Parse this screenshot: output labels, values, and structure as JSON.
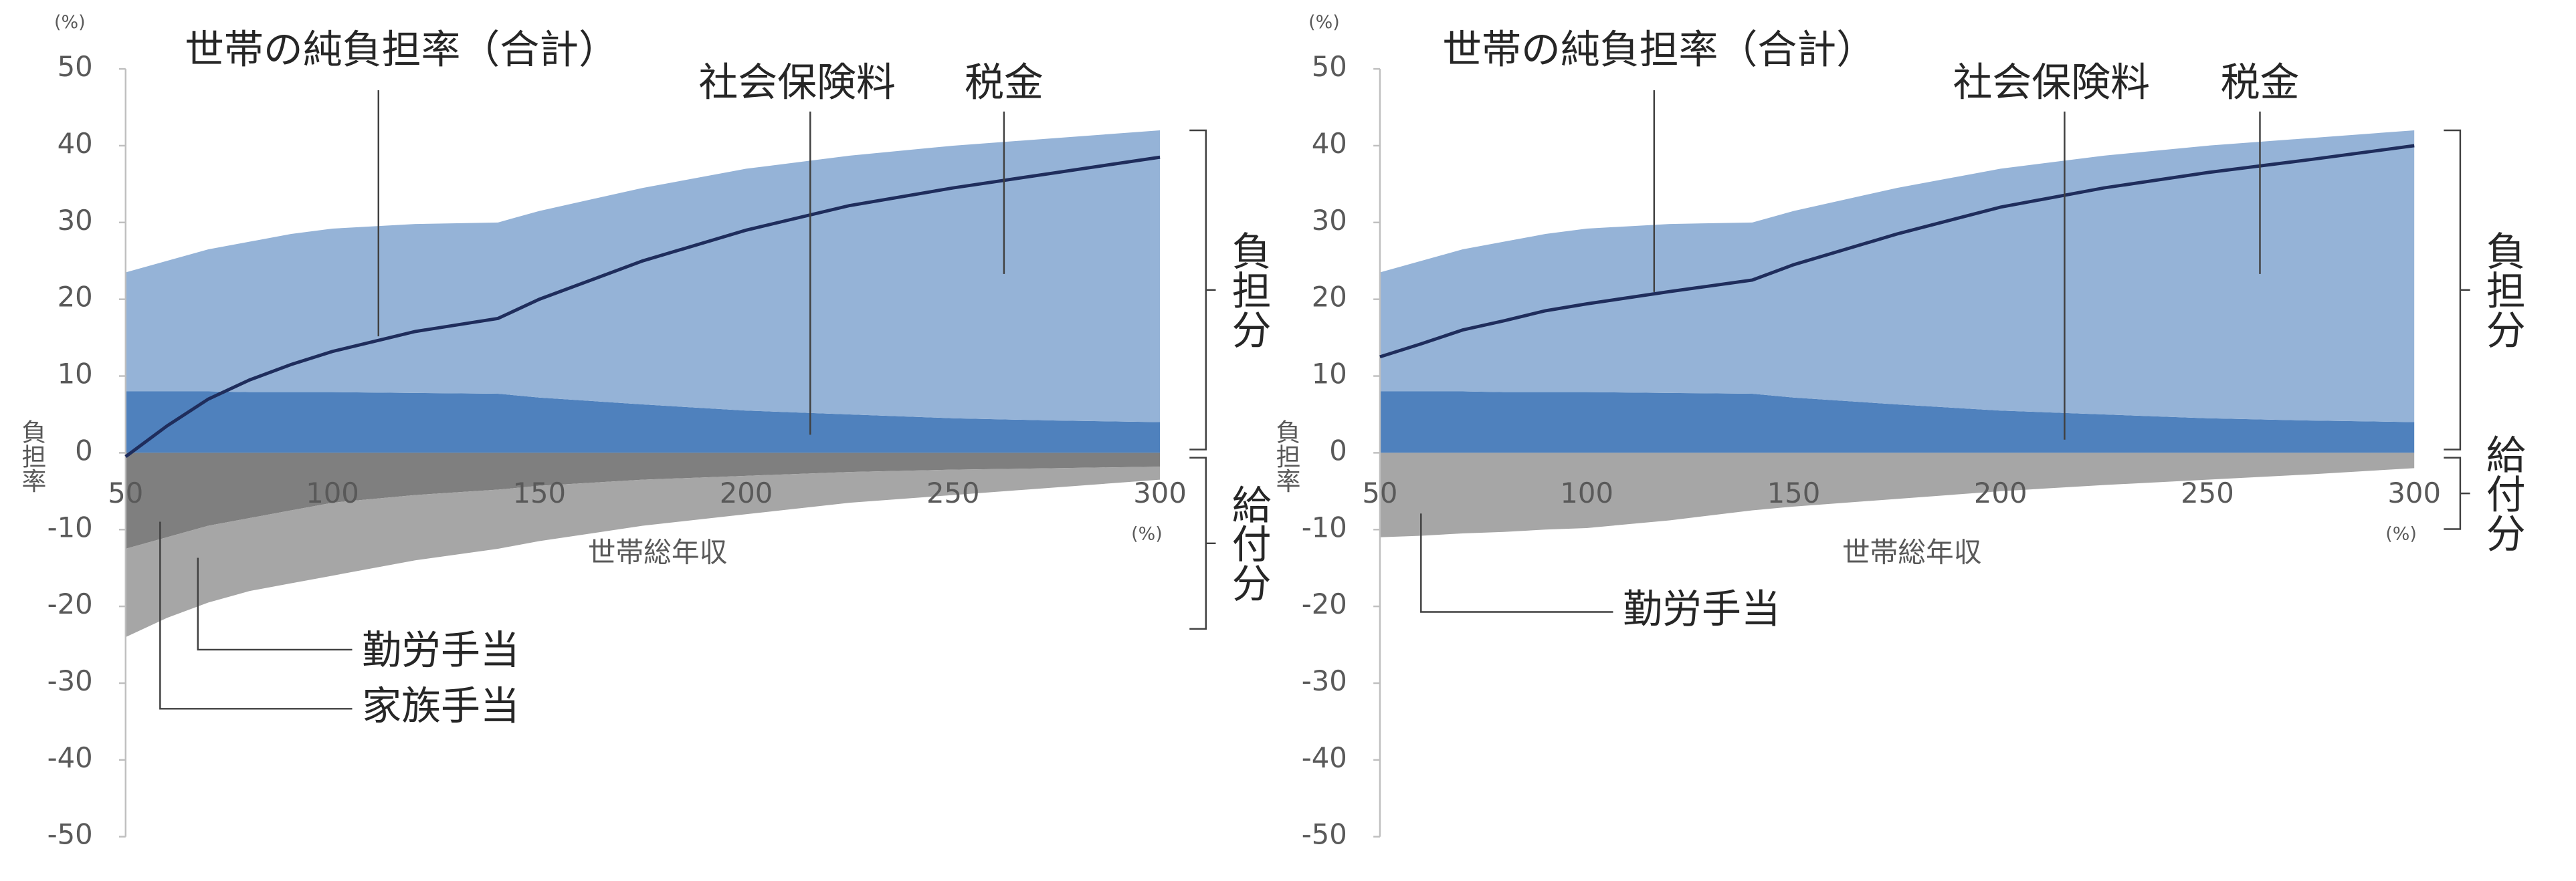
{
  "chart_data": [
    {
      "type": "stacked_area",
      "y_unit": "(%)",
      "x_unit": "(%)",
      "ylabel": "負担率",
      "xlabel": "世帯総年収",
      "annotations": [
        "負担分",
        "給付分"
      ],
      "xlim": [
        50,
        300
      ],
      "xticks": [
        50,
        100,
        150,
        200,
        250,
        300
      ],
      "ylim": [
        -50,
        50
      ],
      "yticks": [
        -50,
        -40,
        -30,
        -20,
        -10,
        0,
        10,
        20,
        30,
        40,
        50
      ],
      "x": [
        50,
        60,
        70,
        80,
        90,
        100,
        120,
        140,
        150,
        175,
        200,
        225,
        250,
        275,
        300
      ],
      "series": [
        {
          "name": "社会保険料",
          "type": "area",
          "color": "#4f81bd",
          "values": [
            8,
            8,
            8,
            7.9,
            7.9,
            7.9,
            7.8,
            7.7,
            7.2,
            6.3,
            5.5,
            5,
            4.5,
            4.2,
            4
          ]
        },
        {
          "name": "税金",
          "type": "area",
          "color": "#95b3d7",
          "values": [
            15.5,
            17,
            18.5,
            19.6,
            20.6,
            21.3,
            22,
            22.3,
            24.3,
            28.2,
            31.5,
            33.7,
            35.5,
            36.8,
            38
          ]
        },
        {
          "name": "家族手当",
          "type": "area",
          "color": "#7f7f7f",
          "values": [
            -12.5,
            -11,
            -9.5,
            -8.5,
            -7.5,
            -6.5,
            -5.5,
            -4.8,
            -4.3,
            -3.5,
            -3,
            -2.5,
            -2.2,
            -2,
            -1.8
          ]
        },
        {
          "name": "勤労手当",
          "type": "area",
          "color": "#a6a6a6",
          "values": [
            -11.5,
            -10.5,
            -10,
            -9.5,
            -9.5,
            -9.5,
            -8.5,
            -7.7,
            -7.2,
            -6,
            -5,
            -4,
            -3.3,
            -2.5,
            -1.7
          ]
        },
        {
          "name": "世帯の純負担率（合計）",
          "type": "line",
          "color": "#1f2d5c",
          "values": [
            -0.5,
            3.5,
            7,
            9.5,
            11.5,
            13.2,
            15.8,
            17.5,
            20,
            25,
            29,
            32.2,
            34.5,
            36.5,
            38.5
          ]
        }
      ]
    },
    {
      "type": "stacked_area",
      "y_unit": "(%)",
      "x_unit": "(%)",
      "ylabel": "負担率",
      "xlabel": "世帯総年収",
      "annotations": [
        "負担分",
        "給付分"
      ],
      "xlim": [
        50,
        300
      ],
      "xticks": [
        50,
        100,
        150,
        200,
        250,
        300
      ],
      "ylim": [
        -50,
        50
      ],
      "yticks": [
        -50,
        -40,
        -30,
        -20,
        -10,
        0,
        10,
        20,
        30,
        40,
        50
      ],
      "x": [
        50,
        60,
        70,
        80,
        90,
        100,
        120,
        140,
        150,
        175,
        200,
        225,
        250,
        275,
        300
      ],
      "series": [
        {
          "name": "社会保険料",
          "type": "area",
          "color": "#4f81bd",
          "values": [
            8,
            8,
            8,
            7.9,
            7.9,
            7.9,
            7.8,
            7.7,
            7.2,
            6.3,
            5.5,
            5,
            4.5,
            4.2,
            4
          ]
        },
        {
          "name": "税金",
          "type": "area",
          "color": "#95b3d7",
          "values": [
            15.5,
            17,
            18.5,
            19.6,
            20.6,
            21.3,
            22,
            22.3,
            24.3,
            28.2,
            31.5,
            33.7,
            35.5,
            36.8,
            38
          ]
        },
        {
          "name": "勤労手当",
          "type": "area",
          "color": "#a6a6a6",
          "values": [
            -11,
            -10.8,
            -10.5,
            -10.3,
            -10,
            -9.8,
            -8.8,
            -7.5,
            -7,
            -6,
            -5,
            -4.2,
            -3.5,
            -2.8,
            -2
          ]
        },
        {
          "name": "世帯の純負担率（合計）",
          "type": "line",
          "color": "#1f2d5c",
          "values": [
            12.5,
            14.2,
            16,
            17.2,
            18.5,
            19.4,
            21,
            22.5,
            24.5,
            28.5,
            32,
            34.5,
            36.5,
            38.2,
            40
          ]
        }
      ]
    }
  ]
}
